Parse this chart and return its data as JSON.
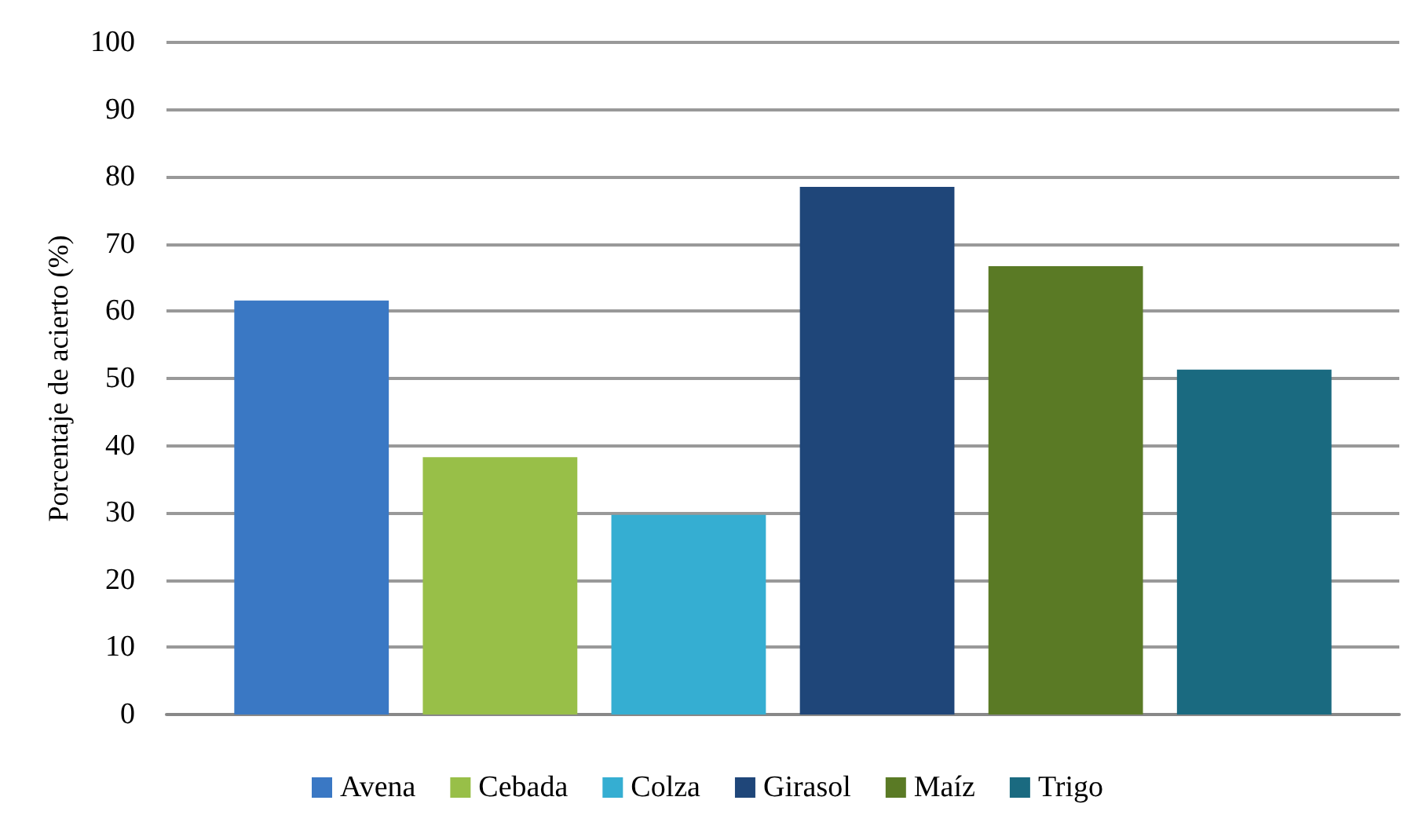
{
  "chart_data": {
    "type": "bar",
    "ylabel": "Porcentaje de acierto (%)",
    "categories": [
      null
    ],
    "series": [
      {
        "name": "Avena",
        "color": "#3a78c4",
        "values": [
          61.6
        ]
      },
      {
        "name": "Cebada",
        "color": "#98bf48",
        "values": [
          38.3
        ]
      },
      {
        "name": "Colza",
        "color": "#35aed2",
        "values": [
          29.7
        ]
      },
      {
        "name": "Girasol",
        "color": "#1f4679",
        "values": [
          78.5
        ]
      },
      {
        "name": "Maíz",
        "color": "#5a7a25",
        "values": [
          66.7
        ]
      },
      {
        "name": "Trigo",
        "color": "#1a6a80",
        "values": [
          51.3
        ]
      }
    ],
    "ylim": [
      0,
      100
    ],
    "yticks": [
      0,
      10,
      20,
      30,
      40,
      50,
      60,
      70,
      80,
      90,
      100
    ],
    "grid": "y",
    "legend": "bottom"
  }
}
